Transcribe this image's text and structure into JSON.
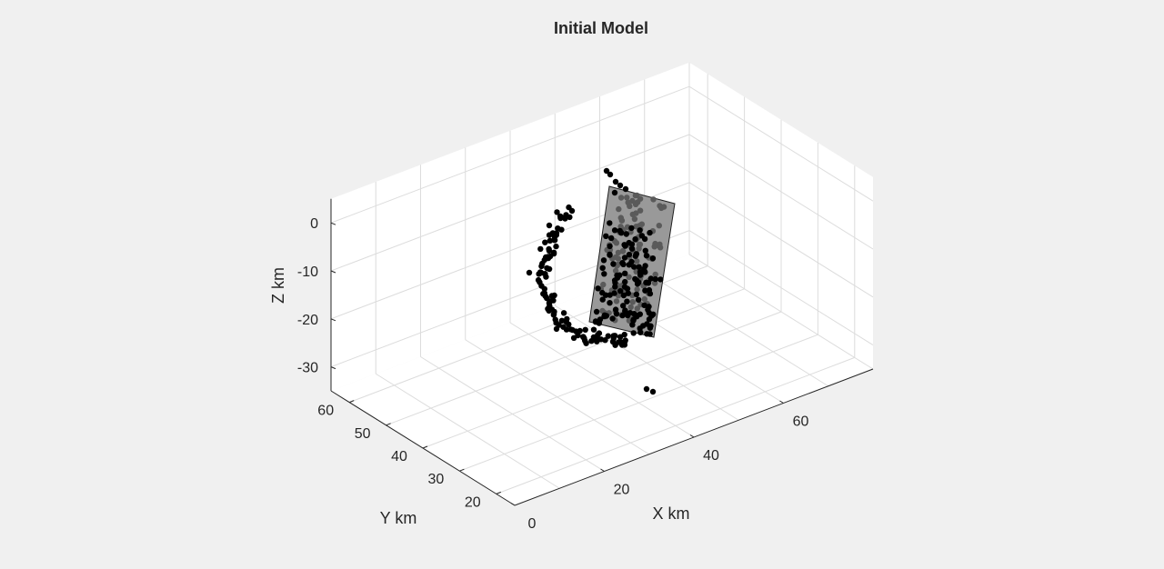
{
  "chart_data": {
    "type": "scatter3d",
    "title": "Initial Model",
    "xlabel": "X km",
    "ylabel": "Y km",
    "zlabel": "Z km",
    "xlim": [
      0,
      80
    ],
    "ylim": [
      15,
      65
    ],
    "zlim": [
      -35,
      5
    ],
    "xticks": [
      "0",
      "20",
      "40",
      "60"
    ],
    "yticks": [
      "20",
      "30",
      "40",
      "50",
      "60"
    ],
    "zticks": [
      "0",
      "-10",
      "-20",
      "-30"
    ],
    "grid": true,
    "fault_plane_color": "#999999",
    "event_color": "#000000",
    "event_on_plane_color": "#5a5a5a",
    "background_color": "#ffffff",
    "figure_color": "#f0f0f0"
  }
}
